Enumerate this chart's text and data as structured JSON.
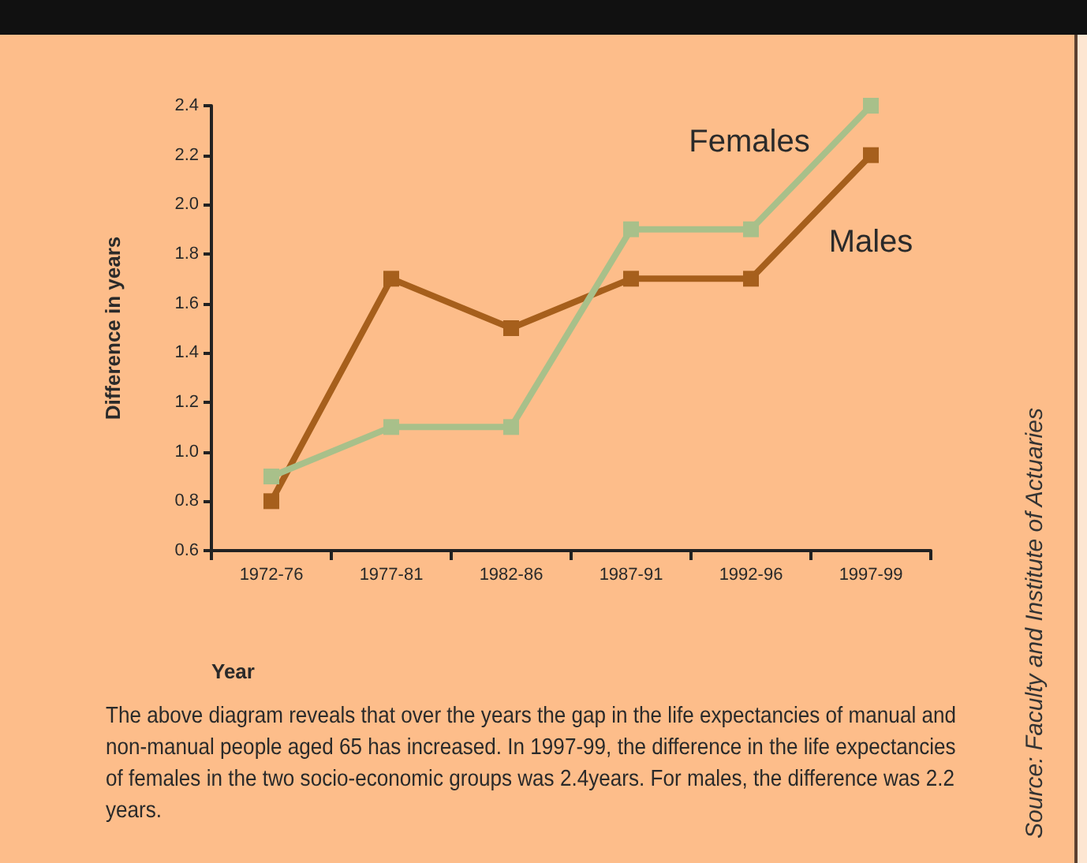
{
  "chart_data": {
    "type": "line",
    "xlabel": "Year",
    "ylabel": "Difference in years",
    "categories": [
      "1972-76",
      "1977-81",
      "1982-86",
      "1987-91",
      "1992-96",
      "1997-99"
    ],
    "series": [
      {
        "name": "Males",
        "color": "#a65f1c",
        "values": [
          0.8,
          1.7,
          1.5,
          1.7,
          1.7,
          2.2
        ]
      },
      {
        "name": "Females",
        "color": "#a8c08a",
        "values": [
          0.9,
          1.1,
          1.1,
          1.9,
          1.9,
          2.4
        ]
      }
    ],
    "ylim": [
      0.6,
      2.4
    ],
    "yticks": [
      0.6,
      0.8,
      {
        "value": 1,
        "label": "1.0"
      },
      1.2,
      1.4,
      1.6,
      1.8,
      {
        "value": 2,
        "label": "2.0"
      },
      2.2,
      2.4
    ],
    "marker": "square",
    "line_style": "solid",
    "grid": false,
    "legend": false,
    "annotations": [
      "The above diagram reveals that over the years the gap in the life expectancies of manual and non-manual people aged  65 has increased. In 1997-99, the difference in the life expectancies of females in the two socio-economic groups was 2.4years. For males, the difference was 2.2 years.",
      "Source: Faculty and Institute of Actuaries"
    ]
  }
}
